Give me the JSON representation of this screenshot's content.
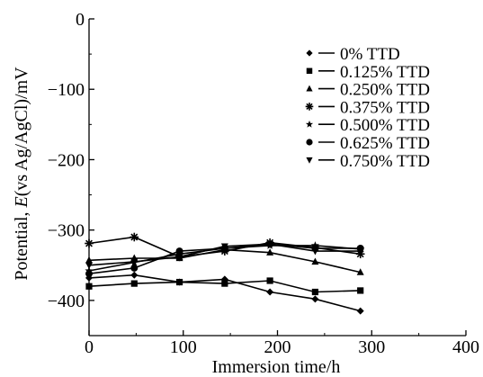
{
  "chart_data": {
    "type": "line",
    "title": "",
    "xlabel": "Immersion time/h",
    "ylabel_prefix": "Potential, ",
    "ylabel_symbol": "E",
    "ylabel_suffix": "(vs Ag/AgCl)/mV",
    "xlim": [
      0,
      400
    ],
    "ylim": [
      -450,
      0
    ],
    "xticks": [
      0,
      100,
      200,
      300,
      400
    ],
    "yticks": [
      0,
      -100,
      -200,
      -300,
      -400
    ],
    "xtick_labels": [
      "0",
      "100",
      "200",
      "300",
      "400"
    ],
    "ytick_labels": [
      "0",
      "−100",
      "−200",
      "−300",
      "−400"
    ],
    "grid": false,
    "legend_position": "top-right",
    "x": [
      0,
      48,
      96,
      144,
      192,
      240,
      288
    ],
    "series": [
      {
        "name": "0% TTD",
        "marker": "diamond",
        "values": [
          -368,
          -364,
          -374,
          -370,
          -388,
          -398,
          -415
        ]
      },
      {
        "name": "0.125% TTD",
        "marker": "square",
        "values": [
          -380,
          -376,
          -374,
          -376,
          -372,
          -388,
          -386
        ]
      },
      {
        "name": "0.250% TTD",
        "marker": "triangle-up",
        "values": [
          -343,
          -340,
          -340,
          -328,
          -332,
          -345,
          -360
        ]
      },
      {
        "name": "0.375% TTD",
        "marker": "asterisk",
        "values": [
          -319,
          -310,
          -338,
          -330,
          -318,
          -325,
          -334
        ]
      },
      {
        "name": "0.500% TTD",
        "marker": "star",
        "values": [
          -358,
          -346,
          -334,
          -326,
          -322,
          -322,
          -327
        ]
      },
      {
        "name": "0.625% TTD",
        "marker": "circle",
        "values": [
          -362,
          -354,
          -330,
          -326,
          -320,
          -326,
          -326
        ]
      },
      {
        "name": "0.750% TTD",
        "marker": "triangle-down",
        "values": [
          -350,
          -345,
          -338,
          -323,
          -320,
          -330,
          -330
        ]
      }
    ]
  }
}
